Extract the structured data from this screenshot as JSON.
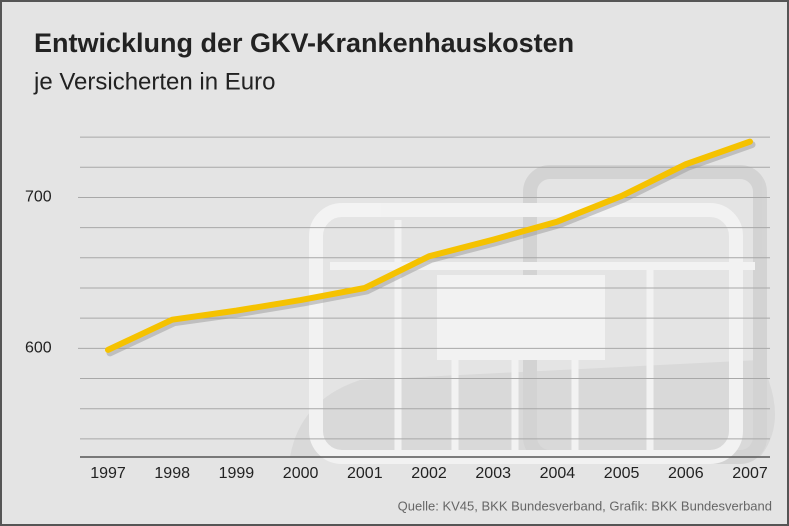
{
  "chart_data": {
    "type": "line",
    "title": "Entwicklung der GKV-Krankenhauskosten",
    "subtitle": "je Versicherten in Euro",
    "source": "Quelle: KV45, BKK Bundesverband, Grafik: BKK Bundesverband",
    "categories": [
      "1997",
      "1998",
      "1999",
      "2000",
      "2001",
      "2002",
      "2003",
      "2004",
      "2005",
      "2006",
      "2007"
    ],
    "values": [
      599,
      619,
      625,
      632,
      640,
      661,
      672,
      684,
      701,
      722,
      737
    ],
    "color": "#f5c200",
    "ylim": [
      528,
      750
    ],
    "yticks": [
      600,
      700
    ],
    "grid": true,
    "grid_step": 20
  }
}
